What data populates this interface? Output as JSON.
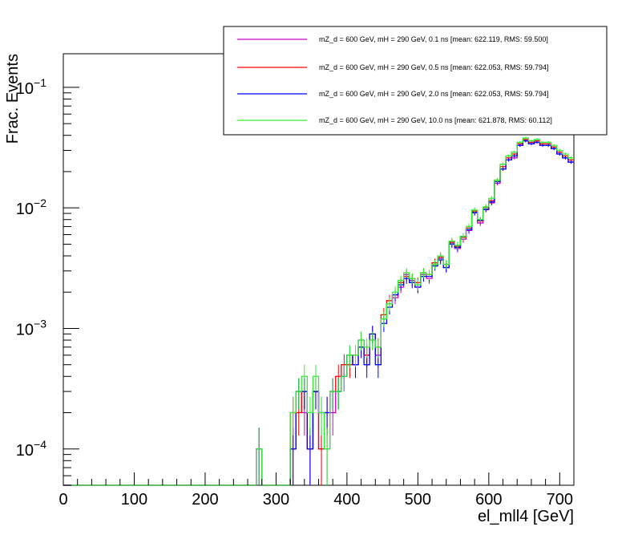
{
  "chart_data": {
    "type": "line",
    "title": "",
    "xlabel": "el_mll4 [GeV]",
    "ylabel": "Frac. Events",
    "xlim": [
      0,
      720
    ],
    "ylim": [
      5e-05,
      0.19
    ],
    "yscale": "log",
    "bin_width": 8,
    "x_ticks": [
      0,
      100,
      200,
      300,
      400,
      500,
      600,
      700
    ],
    "x_tick_labels": [
      "0",
      "100",
      "200",
      "300",
      "400",
      "500",
      "600",
      "700"
    ],
    "y_ticks": [
      0.0001,
      0.001,
      0.01,
      0.1
    ],
    "y_tick_labels": [
      {
        "base": "10",
        "exp": "−4"
      },
      {
        "base": "10",
        "exp": "−3"
      },
      {
        "base": "10",
        "exp": "−2"
      },
      {
        "base": "10",
        "exp": "−1"
      }
    ],
    "legend_position": "top-right",
    "series": [
      {
        "name": "mZ_d = 600 GeV, mH = 290 GeV, 0.1 ns [mean: 622.119, RMS: 59.500]",
        "color": "#cc00cc",
        "points": [
          [
            276,
            0.0001
          ],
          [
            324,
            0.0001
          ],
          [
            332,
            0.0003
          ],
          [
            340,
            0.0002
          ],
          [
            348,
            0.0001
          ],
          [
            356,
            0.0003
          ],
          [
            364,
            0.0001
          ],
          [
            372,
            0.0001
          ],
          [
            380,
            0.0002
          ],
          [
            388,
            0.0003
          ],
          [
            396,
            0.0004
          ],
          [
            404,
            0.0006
          ],
          [
            412,
            0.0005
          ],
          [
            420,
            0.0008
          ],
          [
            428,
            0.0006
          ],
          [
            436,
            0.0008
          ],
          [
            444,
            0.0006
          ],
          [
            452,
            0.0012
          ],
          [
            460,
            0.0016
          ],
          [
            468,
            0.0018
          ],
          [
            476,
            0.0022
          ],
          [
            484,
            0.0028
          ],
          [
            492,
            0.0025
          ],
          [
            500,
            0.0022
          ],
          [
            508,
            0.0028
          ],
          [
            516,
            0.0026
          ],
          [
            524,
            0.0034
          ],
          [
            532,
            0.0038
          ],
          [
            540,
            0.0032
          ],
          [
            548,
            0.0051
          ],
          [
            556,
            0.0046
          ],
          [
            564,
            0.0055
          ],
          [
            572,
            0.0065
          ],
          [
            580,
            0.0092
          ],
          [
            588,
            0.0075
          ],
          [
            596,
            0.0098
          ],
          [
            604,
            0.011
          ],
          [
            612,
            0.016
          ],
          [
            620,
            0.021
          ],
          [
            628,
            0.025
          ],
          [
            636,
            0.026
          ],
          [
            644,
            0.033
          ],
          [
            652,
            0.036
          ],
          [
            660,
            0.034
          ],
          [
            668,
            0.035
          ],
          [
            676,
            0.033
          ],
          [
            684,
            0.033
          ],
          [
            692,
            0.031
          ],
          [
            700,
            0.028
          ],
          [
            708,
            0.026
          ],
          [
            716,
            0.024
          ]
        ]
      },
      {
        "name": "mZ_d = 600 GeV, mH = 290 GeV, 0.5 ns [mean: 622.053, RMS: 59.794]",
        "color": "#ff0000",
        "points": [
          [
            276,
            0.0001
          ],
          [
            324,
            0.0002
          ],
          [
            332,
            0.0002
          ],
          [
            340,
            0.0003
          ],
          [
            348,
            0.0001
          ],
          [
            356,
            0.0003
          ],
          [
            364,
            0.0001
          ],
          [
            372,
            0.0002
          ],
          [
            380,
            0.0003
          ],
          [
            388,
            0.0004
          ],
          [
            396,
            0.0005
          ],
          [
            404,
            0.0005
          ],
          [
            412,
            0.0006
          ],
          [
            420,
            0.0007
          ],
          [
            428,
            0.0006
          ],
          [
            436,
            0.0009
          ],
          [
            444,
            0.0007
          ],
          [
            452,
            0.0013
          ],
          [
            460,
            0.0017
          ],
          [
            468,
            0.0019
          ],
          [
            476,
            0.0024
          ],
          [
            484,
            0.0027
          ],
          [
            492,
            0.0026
          ],
          [
            500,
            0.0024
          ],
          [
            508,
            0.0029
          ],
          [
            516,
            0.0028
          ],
          [
            524,
            0.0035
          ],
          [
            532,
            0.0039
          ],
          [
            540,
            0.0034
          ],
          [
            548,
            0.0052
          ],
          [
            556,
            0.0048
          ],
          [
            564,
            0.0057
          ],
          [
            572,
            0.0068
          ],
          [
            580,
            0.0094
          ],
          [
            588,
            0.0078
          ],
          [
            596,
            0.0101
          ],
          [
            604,
            0.0115
          ],
          [
            612,
            0.017
          ],
          [
            620,
            0.022
          ],
          [
            628,
            0.026
          ],
          [
            636,
            0.028
          ],
          [
            644,
            0.034
          ],
          [
            652,
            0.037
          ],
          [
            660,
            0.035
          ],
          [
            668,
            0.036
          ],
          [
            676,
            0.034
          ],
          [
            684,
            0.034
          ],
          [
            692,
            0.032
          ],
          [
            700,
            0.029
          ],
          [
            708,
            0.027
          ],
          [
            716,
            0.025
          ]
        ]
      },
      {
        "name": "mZ_d = 600 GeV, mH = 290 GeV, 2.0 ns [mean: 622.053, RMS: 59.794]",
        "color": "#0000ff",
        "points": [
          [
            276,
            0.0001
          ],
          [
            324,
            0.0001
          ],
          [
            332,
            0.0003
          ],
          [
            340,
            0.0003
          ],
          [
            348,
            0.0001
          ],
          [
            356,
            0.0003
          ],
          [
            364,
            0.0002
          ],
          [
            372,
            0.0002
          ],
          [
            380,
            0.0003
          ],
          [
            388,
            0.0003
          ],
          [
            396,
            0.0004
          ],
          [
            404,
            0.0006
          ],
          [
            412,
            0.0005
          ],
          [
            420,
            0.0007
          ],
          [
            428,
            0.0005
          ],
          [
            436,
            0.0009
          ],
          [
            444,
            0.0005
          ],
          [
            452,
            0.0011
          ],
          [
            460,
            0.0015
          ],
          [
            468,
            0.0019
          ],
          [
            476,
            0.0023
          ],
          [
            484,
            0.0026
          ],
          [
            492,
            0.0024
          ],
          [
            500,
            0.0022
          ],
          [
            508,
            0.0027
          ],
          [
            516,
            0.0027
          ],
          [
            524,
            0.0033
          ],
          [
            532,
            0.0037
          ],
          [
            540,
            0.0032
          ],
          [
            548,
            0.005
          ],
          [
            556,
            0.0047
          ],
          [
            564,
            0.0058
          ],
          [
            572,
            0.0066
          ],
          [
            580,
            0.0091
          ],
          [
            588,
            0.0079
          ],
          [
            596,
            0.0097
          ],
          [
            604,
            0.0112
          ],
          [
            612,
            0.0165
          ],
          [
            620,
            0.021
          ],
          [
            628,
            0.025
          ],
          [
            636,
            0.027
          ],
          [
            644,
            0.033
          ],
          [
            652,
            0.036
          ],
          [
            660,
            0.034
          ],
          [
            668,
            0.035
          ],
          [
            676,
            0.033
          ],
          [
            684,
            0.033
          ],
          [
            692,
            0.031
          ],
          [
            700,
            0.028
          ],
          [
            708,
            0.026
          ],
          [
            716,
            0.024
          ]
        ]
      },
      {
        "name": "mZ_d = 600 GeV, mH = 290 GeV, 10.0 ns [mean: 621.878, RMS: 60.112]",
        "color": "#33ee33",
        "points": [
          [
            276,
            0.0001
          ],
          [
            324,
            0.0002
          ],
          [
            332,
            0.0003
          ],
          [
            340,
            0.0004
          ],
          [
            348,
            0.0002
          ],
          [
            356,
            0.0004
          ],
          [
            364,
            0.0002
          ],
          [
            372,
            0.0001
          ],
          [
            380,
            0.0003
          ],
          [
            388,
            0.0003
          ],
          [
            396,
            0.0004
          ],
          [
            404,
            0.0006
          ],
          [
            412,
            0.0006
          ],
          [
            420,
            0.0008
          ],
          [
            428,
            0.0007
          ],
          [
            436,
            0.0008
          ],
          [
            444,
            0.0007
          ],
          [
            452,
            0.0012
          ],
          [
            460,
            0.0016
          ],
          [
            468,
            0.002
          ],
          [
            476,
            0.0025
          ],
          [
            484,
            0.0029
          ],
          [
            492,
            0.0026
          ],
          [
            500,
            0.0023
          ],
          [
            508,
            0.0029
          ],
          [
            516,
            0.0028
          ],
          [
            524,
            0.0034
          ],
          [
            532,
            0.004
          ],
          [
            540,
            0.0034
          ],
          [
            548,
            0.0053
          ],
          [
            556,
            0.0049
          ],
          [
            564,
            0.0058
          ],
          [
            572,
            0.007
          ],
          [
            580,
            0.0096
          ],
          [
            588,
            0.008
          ],
          [
            596,
            0.0102
          ],
          [
            604,
            0.012
          ],
          [
            612,
            0.017
          ],
          [
            620,
            0.023
          ],
          [
            628,
            0.027
          ],
          [
            636,
            0.029
          ],
          [
            644,
            0.035
          ],
          [
            652,
            0.038
          ],
          [
            660,
            0.036
          ],
          [
            668,
            0.037
          ],
          [
            676,
            0.035
          ],
          [
            684,
            0.035
          ],
          [
            692,
            0.033
          ],
          [
            700,
            0.03
          ],
          [
            708,
            0.028
          ],
          [
            716,
            0.026
          ]
        ]
      }
    ]
  }
}
